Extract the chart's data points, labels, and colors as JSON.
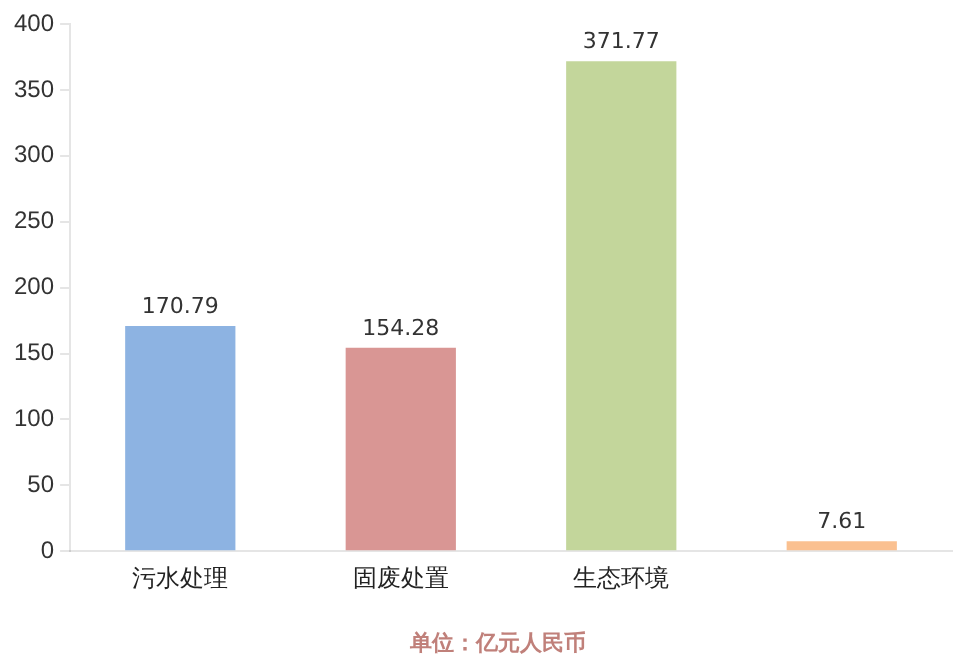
{
  "chart_data": {
    "type": "bar",
    "categories": [
      "污水处理",
      "固废处置",
      "生态环境",
      null
    ],
    "values": [
      170.79,
      154.28,
      371.77,
      7.61
    ],
    "colors": [
      "#8db3e2",
      "#d99694",
      "#c3d69b",
      "#fac090"
    ],
    "ylim": [
      0,
      400
    ],
    "yticks": [
      0,
      50,
      100,
      150,
      200,
      250,
      300,
      350,
      400
    ],
    "grid": false,
    "legend": false,
    "data_labels": true,
    "annotations": [
      "单位：亿元人民币"
    ]
  }
}
